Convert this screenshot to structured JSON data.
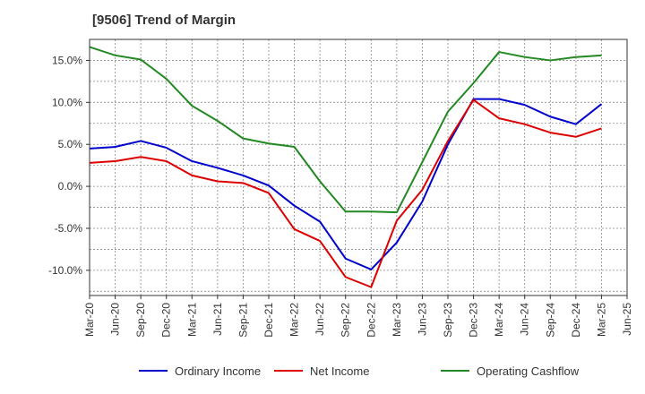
{
  "chart_data": {
    "type": "line",
    "title": "[9506]  Trend of Margin",
    "xlabel": "",
    "ylabel": "",
    "x_ticks": [
      "Mar-20",
      "Jun-20",
      "Sep-20",
      "Dec-20",
      "Mar-21",
      "Jun-21",
      "Sep-21",
      "Dec-21",
      "Mar-22",
      "Jun-22",
      "Sep-22",
      "Dec-22",
      "Mar-23",
      "Jun-23",
      "Sep-23",
      "Dec-23",
      "Mar-24",
      "Jun-24",
      "Sep-24",
      "Dec-24",
      "Mar-25",
      "Jun-25"
    ],
    "x": [
      "Mar-20",
      "Jun-20",
      "Sep-20",
      "Dec-20",
      "Mar-21",
      "Jun-21",
      "Sep-21",
      "Dec-21",
      "Mar-22",
      "Jun-22",
      "Sep-22",
      "Dec-22",
      "Mar-23",
      "Jun-23",
      "Sep-23",
      "Dec-23",
      "Mar-24",
      "Jun-24",
      "Sep-24",
      "Dec-24",
      "Mar-25"
    ],
    "y_ticks": [
      "15.0%",
      "10.0%",
      "5.0%",
      "0.0%",
      "-5.0%",
      "-10.0%"
    ],
    "y_tick_values": [
      15,
      10,
      5,
      0,
      -5,
      -10
    ],
    "ylim": [
      -13,
      17.5
    ],
    "grid": true,
    "legend_position": "bottom",
    "series": [
      {
        "name": "Ordinary Income",
        "color": "#0000cc",
        "values": [
          4.5,
          4.7,
          5.4,
          4.6,
          3.0,
          2.2,
          1.3,
          0.1,
          -2.3,
          -4.2,
          -8.6,
          -9.9,
          -6.7,
          -1.8,
          5.0,
          10.4,
          10.4,
          9.7,
          8.3,
          7.4,
          9.8
        ]
      },
      {
        "name": "Net Income",
        "color": "#dd0000",
        "values": [
          2.8,
          3.0,
          3.5,
          3.0,
          1.3,
          0.6,
          0.4,
          -0.8,
          -5.1,
          -6.5,
          -10.8,
          -12.0,
          -4.1,
          -0.4,
          5.4,
          10.3,
          8.1,
          7.4,
          6.4,
          5.9,
          6.9
        ]
      },
      {
        "name": "Operating Cashflow",
        "color": "#228822",
        "values": [
          16.6,
          15.6,
          15.1,
          12.8,
          9.6,
          7.8,
          5.7,
          5.1,
          4.7,
          0.6,
          -3.0,
          -3.0,
          -3.1,
          2.9,
          8.9,
          12.3,
          16.0,
          15.4,
          15.0,
          15.4,
          15.6
        ]
      }
    ]
  }
}
